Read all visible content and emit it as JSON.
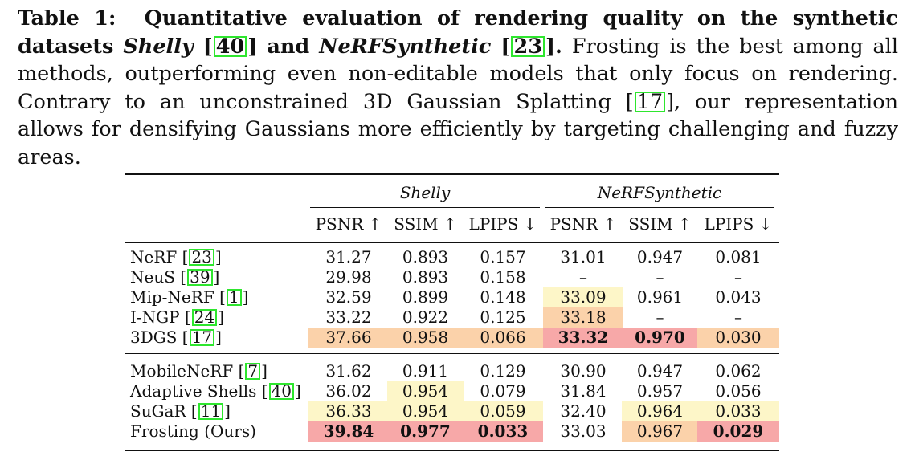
{
  "caption": {
    "label": "Table 1:",
    "title_a": "Quantitative evaluation of rendering quality on the synthetic datasets",
    "shelly": "Shelly",
    "cite_shelly": "40",
    "and": "and",
    "nerfsyn": "NeRFSynthetic",
    "cite_nerf": "23",
    "body_a": "Frosting is the best among all methods, outperforming even non-editable models that only focus on rendering. Contrary to an unconstrained 3D Gaussian Splatting",
    "cite_3dgs": "17",
    "body_b": ", our representation allows for densifying Gaussians more efficiently by targeting challenging and fuzzy areas."
  },
  "table": {
    "groups": [
      "Shelly",
      "NeRFSynthetic"
    ],
    "headers": [
      "PSNR ↑",
      "SSIM ↑",
      "LPIPS ↓",
      "PSNR ↑",
      "SSIM ↑",
      "LPIPS ↓"
    ],
    "rows": [
      {
        "name": "NeRF",
        "cite": "23",
        "values": [
          "31.27",
          "0.893",
          "0.157",
          "31.01",
          "0.947",
          "0.081"
        ]
      },
      {
        "name": "NeuS",
        "cite": "39",
        "values": [
          "29.98",
          "0.893",
          "0.158",
          "–",
          "–",
          "–"
        ]
      },
      {
        "name": "Mip-NeRF",
        "cite": "1",
        "values": [
          "32.59",
          "0.899",
          "0.148",
          "33.09",
          "0.961",
          "0.043"
        ]
      },
      {
        "name": "I-NGP",
        "cite": "24",
        "values": [
          "33.22",
          "0.922",
          "0.125",
          "33.18",
          "–",
          "–"
        ]
      },
      {
        "name": "3DGS",
        "cite": "17",
        "values": [
          "37.66",
          "0.958",
          "0.066",
          "33.32",
          "0.970",
          "0.030"
        ]
      },
      {
        "name": "MobileNeRF",
        "cite": "7",
        "values": [
          "31.62",
          "0.911",
          "0.129",
          "30.90",
          "0.947",
          "0.062"
        ]
      },
      {
        "name": "Adaptive Shells",
        "cite": "40",
        "values": [
          "36.02",
          "0.954",
          "0.079",
          "31.84",
          "0.957",
          "0.056"
        ]
      },
      {
        "name": "SuGaR",
        "cite": "11",
        "values": [
          "36.33",
          "0.954",
          "0.059",
          "32.40",
          "0.964",
          "0.033"
        ]
      },
      {
        "name": "Frosting (Ours)",
        "cite": "",
        "values": [
          "39.84",
          "0.977",
          "0.033",
          "33.03",
          "0.967",
          "0.029"
        ]
      }
    ],
    "colors": {
      "first": "#f7a8a8",
      "second": "#fbd2aa",
      "third": "#fdf6c8"
    }
  }
}
